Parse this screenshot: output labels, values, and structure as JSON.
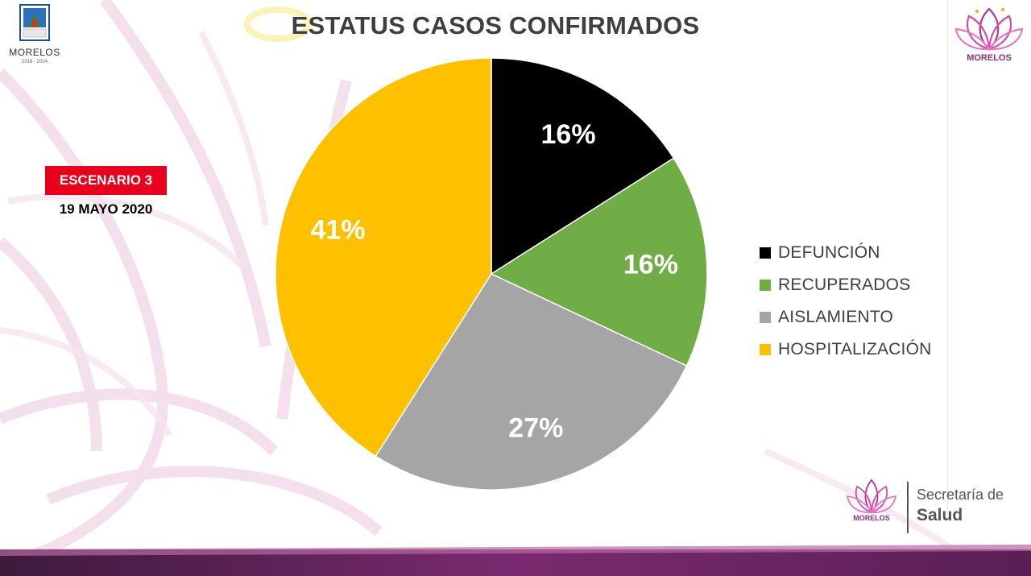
{
  "header": {
    "title": "ESTATUS CASOS CONFIRMADOS"
  },
  "logo_left": {
    "name": "MORELOS",
    "period": "2018 - 2024"
  },
  "logo_right": {
    "name": "MORELOS"
  },
  "scenario": {
    "label": "ESCENARIO 3",
    "date": "19 MAYO 2020"
  },
  "footer": {
    "logo_name": "MORELOS",
    "secretaria": "Secretaría de",
    "salud": "Salud"
  },
  "colors": {
    "accent_red": "#e8001c",
    "brand_purple": "#8c2f7a"
  },
  "chart_data": {
    "type": "pie",
    "title": "ESTATUS CASOS CONFIRMADOS",
    "categories": [
      "DEFUNCIÓN",
      "RECUPERADOS",
      "AISLAMIENTO",
      "HOSPITALIZACIÓN"
    ],
    "values": [
      16,
      16,
      27,
      41
    ],
    "data_labels": [
      "16%",
      "16%",
      "27%",
      "41%"
    ],
    "colors": [
      "#000000",
      "#70ad47",
      "#a5a5a5",
      "#ffc000"
    ],
    "legend_position": "right",
    "start_angle": "12 o'clock, clockwise"
  }
}
